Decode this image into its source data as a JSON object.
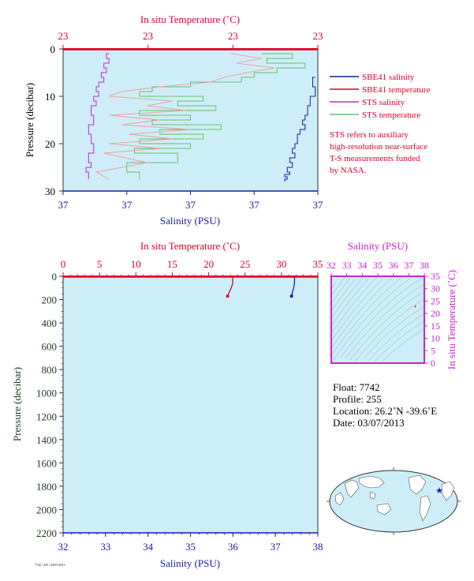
{
  "colors": {
    "plot_bg": "#cdeef8",
    "sbe_salinity": "#1a1aa0",
    "sbe_temperature": "#e0002a",
    "sts_salinity": "#cc22cc",
    "sts_temperature": "#66c066",
    "red_axis": "#e0002a",
    "blue_axis": "#1a1aa0",
    "magenta_axis": "#cc22cc"
  },
  "chart_data": [
    {
      "id": "near-surface-profile",
      "type": "line",
      "top_axis": {
        "label": "In situ Temperature (˚C)",
        "ticks": [
          "23",
          "23",
          "23",
          "23"
        ]
      },
      "bottom_axis": {
        "label": "Salinity (PSU)",
        "ticks": [
          "37",
          "37",
          "37",
          "37",
          "37"
        ]
      },
      "left_axis": {
        "label": "Pressure (decibar)",
        "ticks": [
          "0",
          "10",
          "20",
          "30"
        ]
      },
      "ylim": [
        0,
        30
      ],
      "legend": {
        "placement": "right",
        "entries": [
          {
            "label": "SBE41 salinity",
            "color": "#1a1aa0"
          },
          {
            "label": "SBE41 temperature",
            "color": "#e0002a"
          },
          {
            "label": "STS salinity",
            "color": "#cc22cc"
          },
          {
            "label": "STS temperature",
            "color": "#66c066"
          }
        ]
      },
      "note": [
        "STS refers to auxiliary",
        "high-resolution near-surface",
        "T-S measurements funded",
        "by NASA."
      ],
      "series": [
        {
          "name": "SBE41 salinity",
          "x_frac": [
            0.99,
            0.98,
            0.99,
            0.97,
            0.96,
            0.95,
            0.94,
            0.95,
            0.93,
            0.92,
            0.92,
            0.91,
            0.9,
            0.91,
            0.89,
            0.9,
            0.88,
            0.89,
            0.87,
            0.88,
            0.87
          ],
          "pressure": [
            6,
            8,
            10,
            12,
            14,
            15,
            16,
            17,
            18,
            19,
            20,
            21,
            22,
            23,
            24,
            25,
            26,
            26.5,
            27,
            27.5,
            28
          ]
        },
        {
          "name": "SBE41 temperature",
          "x_frac": [
            1.0,
            1.0
          ],
          "pressure": [
            0,
            0.3
          ]
        },
        {
          "name": "STS salinity",
          "x_frac": [
            0.18,
            0.17,
            0.18,
            0.16,
            0.17,
            0.15,
            0.16,
            0.14,
            0.13,
            0.14,
            0.12,
            0.13,
            0.11,
            0.12,
            0.1,
            0.11,
            0.12,
            0.1,
            0.11,
            0.09,
            0.1
          ],
          "pressure": [
            1,
            2,
            3,
            4,
            5,
            6,
            7,
            8,
            9,
            10,
            11,
            12,
            14,
            16,
            18,
            20,
            22,
            24,
            25,
            26,
            27.5
          ]
        },
        {
          "name": "STS temperature",
          "x_frac": [
            0.78,
            0.9,
            0.8,
            0.95,
            0.84,
            0.75,
            0.7,
            0.5,
            0.35,
            0.3,
            0.55,
            0.45,
            0.6,
            0.3,
            0.5,
            0.35,
            0.62,
            0.38,
            0.55,
            0.3,
            0.5,
            0.28,
            0.45,
            0.25,
            0.3
          ],
          "pressure": [
            1,
            2,
            3,
            4,
            5,
            6,
            7,
            8,
            9,
            10,
            11,
            12,
            13,
            14,
            15,
            16,
            17,
            18,
            19,
            20,
            21,
            22,
            24,
            26,
            27.5
          ]
        }
      ]
    },
    {
      "id": "full-depth-profile",
      "type": "line",
      "top_axis": {
        "label": "In situ Temperature (˚C)",
        "ticks": [
          "0",
          "5",
          "10",
          "15",
          "20",
          "25",
          "30",
          "35"
        ],
        "range": [
          0,
          35
        ]
      },
      "bottom_axis": {
        "label": "Salinity (PSU)",
        "ticks": [
          "32",
          "33",
          "34",
          "35",
          "36",
          "37",
          "38"
        ],
        "range": [
          32,
          38
        ]
      },
      "left_axis": {
        "label": "Pressure (decibar)",
        "ticks": [
          "0",
          "200",
          "400",
          "600",
          "800",
          "1000",
          "1200",
          "1400",
          "1600",
          "1800",
          "2000",
          "2200"
        ],
        "range": [
          0,
          2200
        ]
      },
      "series": [
        {
          "name": "temperature",
          "x": [
            23.3,
            23.3,
            23.1,
            22.8,
            22.6
          ],
          "pressure": [
            0,
            60,
            100,
            140,
            170
          ]
        },
        {
          "name": "salinity",
          "x": [
            37.45,
            37.45,
            37.43,
            37.4,
            37.38
          ],
          "pressure": [
            0,
            60,
            100,
            140,
            170
          ]
        }
      ]
    },
    {
      "id": "ts-diagram",
      "type": "line",
      "top_axis": {
        "label": "Salinity (PSU)",
        "ticks": [
          "32",
          "33",
          "34",
          "35",
          "36",
          "37",
          "38"
        ],
        "range": [
          32,
          38
        ]
      },
      "right_axis": {
        "label": "In situ Temperature (˚C)",
        "ticks": [
          "0",
          "5",
          "10",
          "15",
          "20",
          "25",
          "30",
          "35"
        ],
        "range": [
          0,
          35
        ]
      },
      "series": [
        {
          "name": "T-S",
          "x": [
            37.45,
            37.42,
            37.38
          ],
          "y": [
            23.3,
            22.9,
            22.5
          ]
        }
      ]
    }
  ],
  "float_info": {
    "float": "Float:  7742",
    "profile": "Profile:  255",
    "location": "Location:  26.2˚N  -39.6˚E",
    "date": "Date:  03/07/2013"
  },
  "map": {
    "marker_lat": 26.2,
    "marker_lon": -39.6
  },
  "footer_text": "7742 / 255 / 03/07/2013"
}
